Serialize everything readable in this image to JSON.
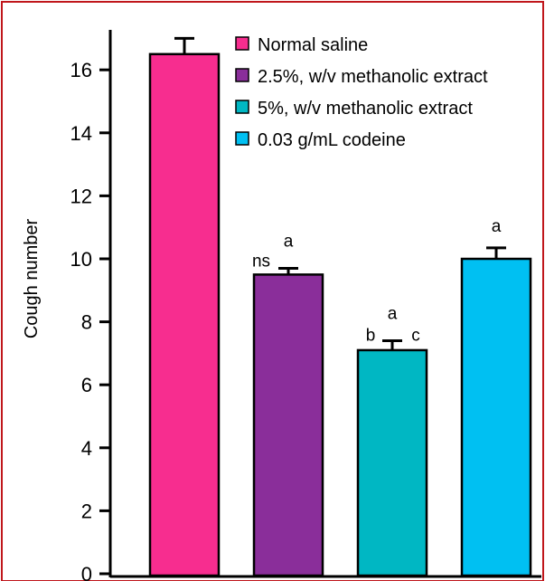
{
  "colors": {
    "frame_border": "#c0161b",
    "axis": "#000000"
  },
  "chart_data": {
    "type": "bar",
    "ylabel": "Cough number",
    "xlabel": "",
    "ylim": [
      0,
      17
    ],
    "yticks": [
      0,
      2,
      4,
      6,
      8,
      10,
      12,
      14,
      16
    ],
    "categories": [
      "Normal saline",
      "2.5%, w/v methanolic extract",
      "5%, w/v methanolic extract",
      "0.03 g/mL codeine"
    ],
    "values": [
      16.5,
      9.5,
      7.1,
      10.0
    ],
    "error": [
      0.5,
      0.2,
      0.3,
      0.35
    ],
    "colors": [
      "#f72d8f",
      "#8a2e9a",
      "#00b7c3",
      "#00c0f2"
    ],
    "annotations": [
      [
        "ns",
        "a"
      ],
      [
        "b",
        "a",
        "c"
      ],
      [
        "a"
      ]
    ],
    "legend": {
      "entries": [
        "Normal saline",
        "2.5%, w/v methanolic extract",
        "5%, w/v methanolic extract",
        "0.03 g/mL codeine"
      ],
      "placement": "top-right"
    },
    "grid": false
  }
}
